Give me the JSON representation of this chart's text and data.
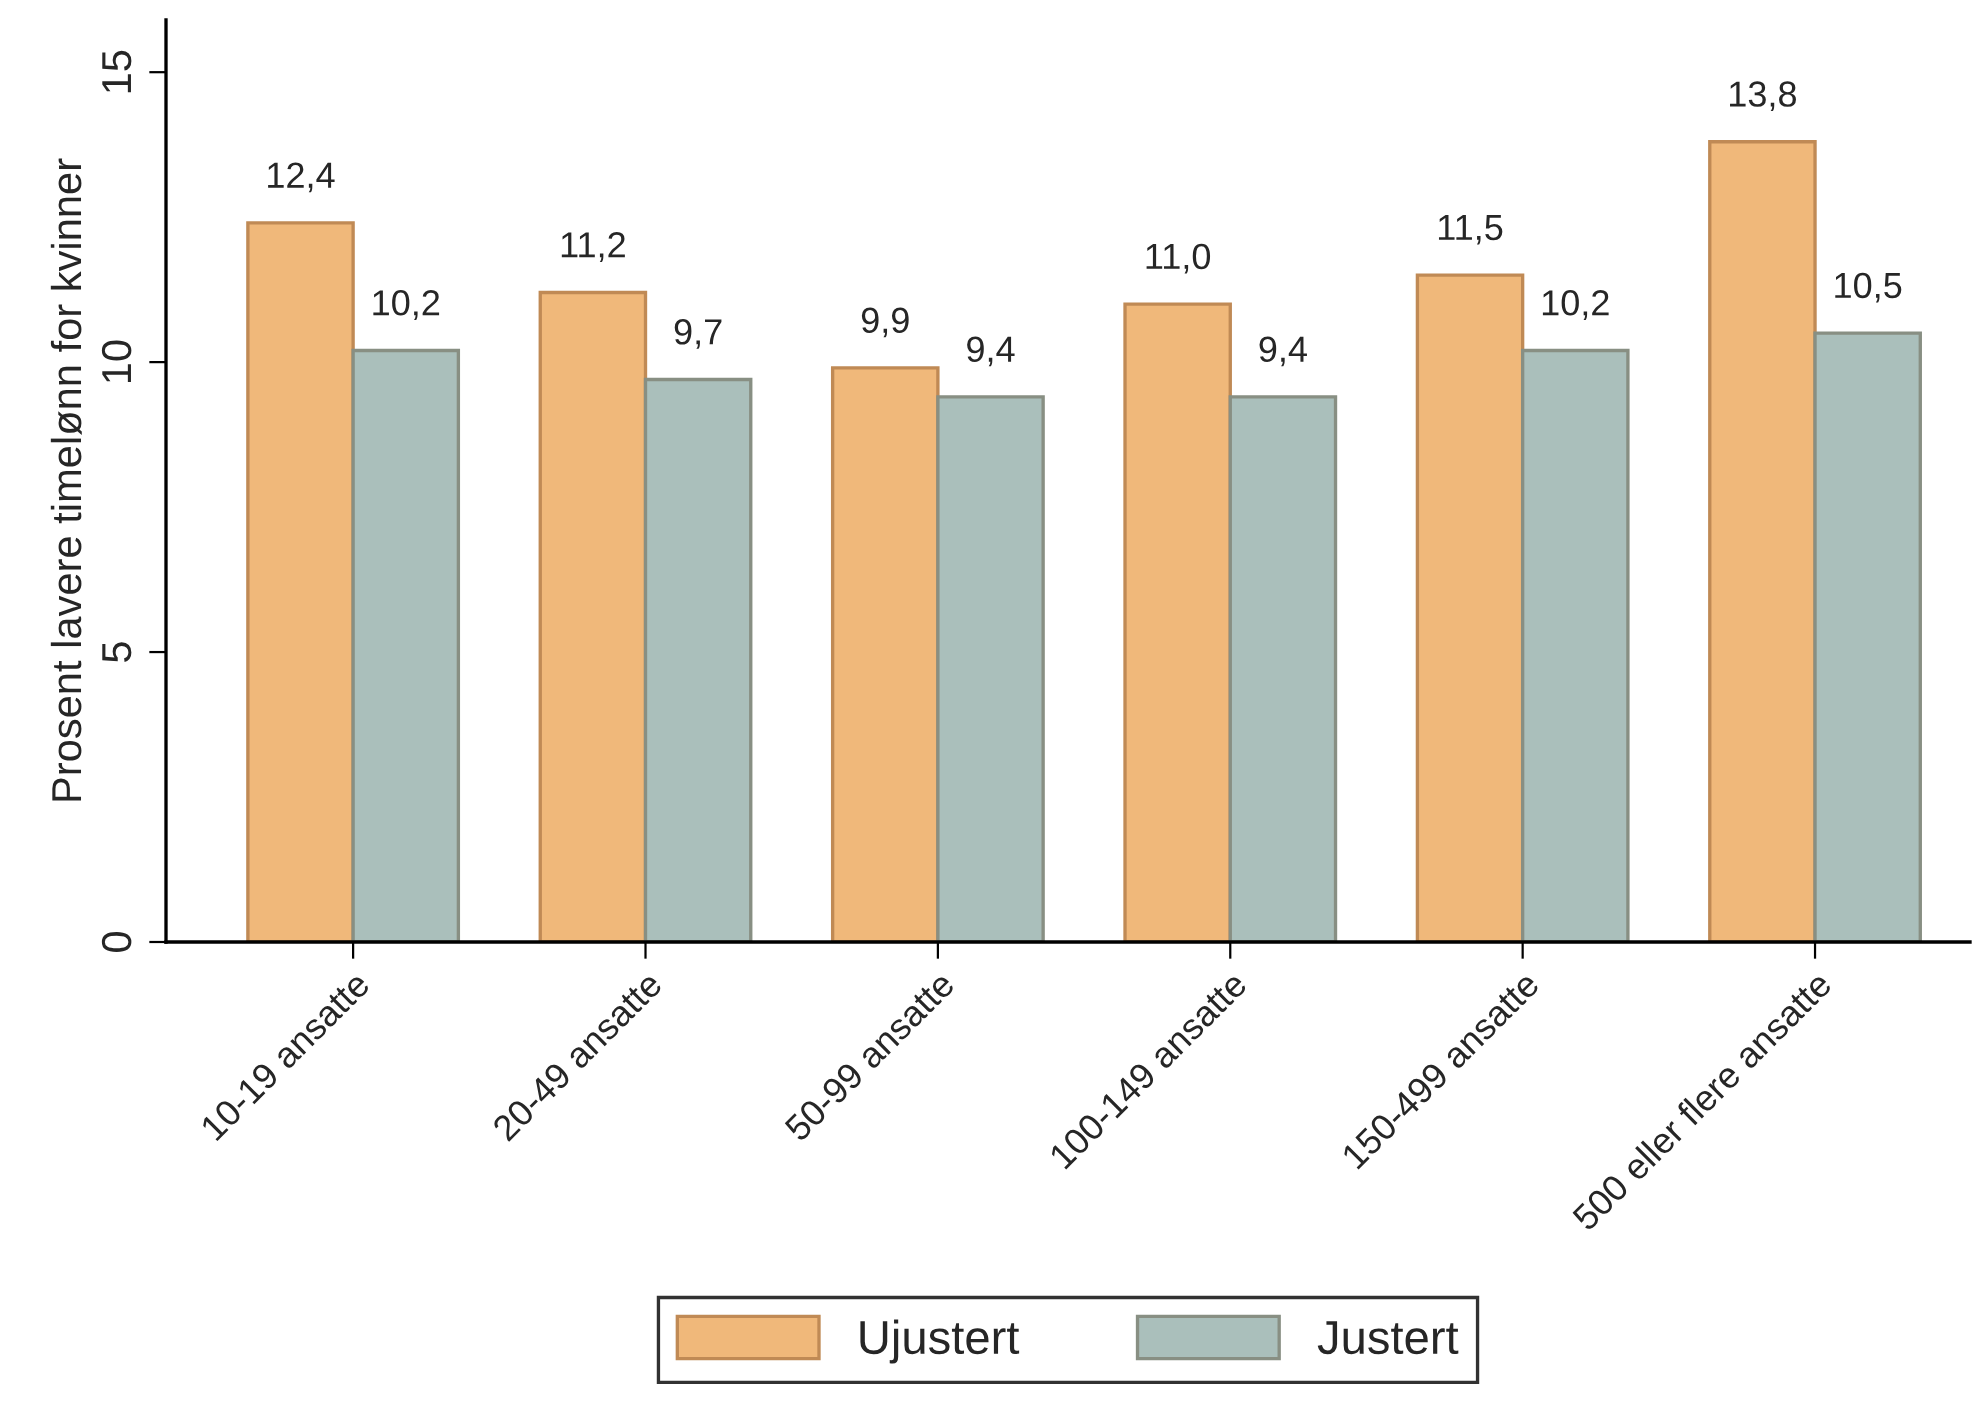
{
  "chart_data": {
    "type": "bar",
    "ylabel": "Prosent lavere timelønn for kvinner",
    "categories": [
      "10-19 ansatte",
      "20-49 ansatte",
      "50-99 ansatte",
      "100-149 ansatte",
      "150-499 ansatte",
      "500 eller flere ansatte"
    ],
    "series": [
      {
        "name": "Ujustert",
        "color": "#f0b87a",
        "values": [
          12.4,
          11.2,
          9.9,
          11.0,
          11.5,
          13.8
        ],
        "value_labels": [
          "12,4",
          "11,2",
          "9,9",
          "11,0",
          "11,5",
          "13,8"
        ]
      },
      {
        "name": "Justert",
        "color": "#aabfbb",
        "values": [
          10.2,
          9.7,
          9.4,
          9.4,
          10.2,
          10.5
        ],
        "value_labels": [
          "10,2",
          "9,7",
          "9,4",
          "9,4",
          "10,2",
          "10,5"
        ]
      }
    ],
    "ylim": [
      0,
      15.9
    ],
    "yticks": [
      0,
      5,
      10,
      15
    ],
    "grid": false,
    "legend": "bottom"
  }
}
